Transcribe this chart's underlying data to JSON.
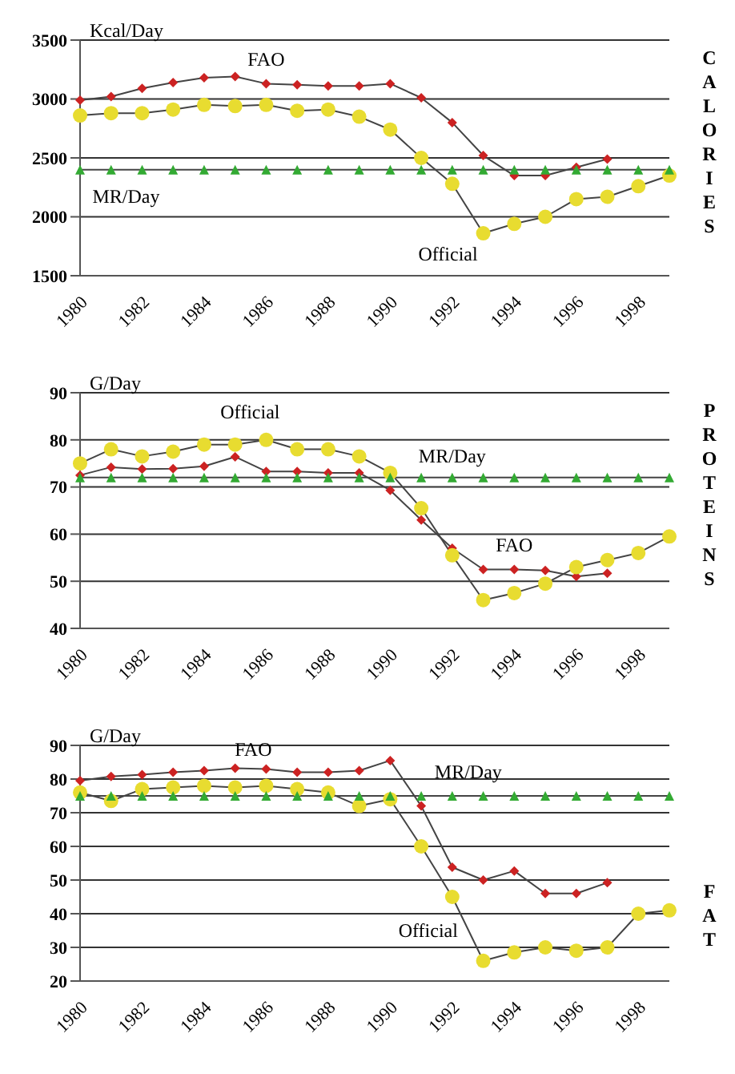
{
  "chart_data": [
    {
      "type": "line",
      "y2label": "CALORIES",
      "ylabel": "Kcal/Day",
      "categories": [
        "1980",
        null,
        "1982",
        null,
        "1984",
        null,
        "1986",
        null,
        "1988",
        null,
        "1990",
        null,
        "1992",
        null,
        "1994",
        null,
        "1996",
        null,
        "1998",
        null
      ],
      "series": [
        {
          "name": "FAO",
          "color": "#cc2222",
          "marker": "diamond",
          "values": [
            2990,
            3020,
            3090,
            3140,
            3180,
            3190,
            3130,
            3120,
            3110,
            3110,
            3130,
            3010,
            2800,
            2520,
            2350,
            2350,
            2420,
            2490,
            null,
            null
          ]
        },
        {
          "name": "Official",
          "color": "#e8dc30",
          "marker": "circle",
          "values": [
            2860,
            2880,
            2880,
            2910,
            2950,
            2940,
            2950,
            2900,
            2910,
            2850,
            2740,
            2500,
            2280,
            1860,
            1940,
            2000,
            2150,
            2170,
            2260,
            2350
          ]
        },
        {
          "name": "MR/Day",
          "color": "#33aa33",
          "marker": "triangle",
          "values": [
            2400,
            2400,
            2400,
            2400,
            2400,
            2400,
            2400,
            2400,
            2400,
            2400,
            2400,
            2400,
            2400,
            2400,
            2400,
            2400,
            2400,
            2400,
            2400,
            2400
          ]
        }
      ],
      "ylim": [
        1500,
        3500
      ],
      "yticks": [
        1500,
        2000,
        2500,
        3000,
        3500
      ],
      "grid": "y",
      "legend": false
    },
    {
      "type": "line",
      "y2label": "PROTEINS",
      "ylabel": "G/Day",
      "categories": [
        "1980",
        null,
        "1982",
        null,
        "1984",
        null,
        "1986",
        null,
        "1988",
        null,
        "1990",
        null,
        "1992",
        null,
        "1994",
        null,
        "1996",
        null,
        "1998",
        null
      ],
      "series": [
        {
          "name": "FAO",
          "color": "#cc2222",
          "marker": "diamond",
          "values": [
            72.5,
            74.2,
            73.8,
            73.9,
            74.4,
            76.4,
            73.3,
            73.3,
            73,
            73,
            69.3,
            63,
            57,
            52.5,
            52.5,
            52.3,
            51,
            51.7,
            null,
            null
          ]
        },
        {
          "name": "Official",
          "color": "#e8dc30",
          "marker": "circle",
          "values": [
            75,
            78,
            76.5,
            77.5,
            79,
            79,
            80,
            78,
            78,
            76.5,
            73,
            65.5,
            55.5,
            46,
            47.5,
            49.5,
            53,
            54.5,
            56,
            59.5
          ]
        },
        {
          "name": "MR/Day",
          "color": "#33aa33",
          "marker": "triangle",
          "values": [
            72,
            72,
            72,
            72,
            72,
            72,
            72,
            72,
            72,
            72,
            72,
            72,
            72,
            72,
            72,
            72,
            72,
            72,
            72,
            72
          ]
        }
      ],
      "ylim": [
        40,
        90
      ],
      "yticks": [
        40,
        50,
        60,
        70,
        80,
        90
      ],
      "grid": "y",
      "legend": false
    },
    {
      "type": "line",
      "y2label": "FAT",
      "ylabel": "G/Day",
      "categories": [
        "1980",
        null,
        "1982",
        null,
        "1984",
        null,
        "1986",
        null,
        "1988",
        null,
        "1990",
        null,
        "1992",
        null,
        "1994",
        null,
        "1996",
        null,
        "1998",
        null
      ],
      "series": [
        {
          "name": "FAO",
          "color": "#cc2222",
          "marker": "diamond",
          "values": [
            79.5,
            80.8,
            81.3,
            82,
            82.5,
            83.2,
            83,
            82,
            82,
            82.5,
            85.5,
            72,
            53.8,
            50,
            52.7,
            46,
            46,
            49.2,
            null,
            null
          ]
        },
        {
          "name": "Official",
          "color": "#e8dc30",
          "marker": "circle",
          "values": [
            76,
            73.5,
            77,
            77.5,
            78,
            77.5,
            78,
            77,
            76,
            72,
            74,
            60,
            45,
            26,
            28.5,
            30,
            29,
            30,
            40,
            41
          ]
        },
        {
          "name": "MR/Day",
          "color": "#33aa33",
          "marker": "triangle",
          "values": [
            75,
            75,
            75,
            75,
            75,
            75,
            75,
            75,
            75,
            75,
            75,
            75,
            75,
            75,
            75,
            75,
            75,
            75,
            75,
            75
          ]
        }
      ],
      "ylim": [
        20,
        90
      ],
      "yticks": [
        20,
        30,
        40,
        50,
        60,
        70,
        80,
        90
      ],
      "grid": "y",
      "legend": false
    }
  ]
}
